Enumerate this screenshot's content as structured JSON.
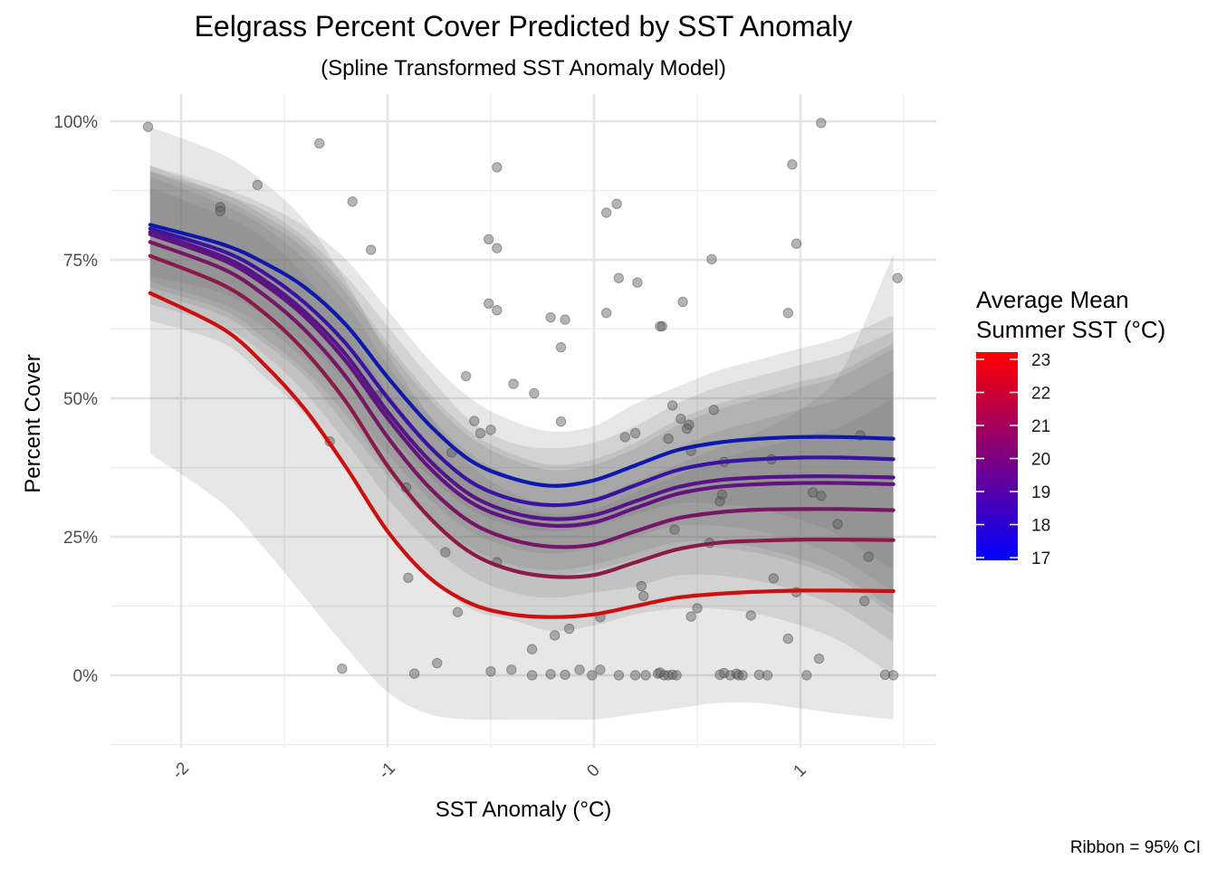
{
  "chart_data": {
    "type": "line",
    "title": "Eelgrass Percent Cover Predicted by SST Anomaly",
    "subtitle": "(Spline Transformed SST Anomaly Model)",
    "xlabel": "SST Anomaly (°C)",
    "ylabel": "Percent Cover",
    "caption": "Ribbon = 95% CI",
    "xlim": [
      -2.35,
      1.65
    ],
    "ylim": [
      -0.13,
      1.05
    ],
    "x_ticks": [
      -2,
      -1,
      0,
      1
    ],
    "x_tick_labels": [
      "-2",
      "-1",
      "0",
      "1"
    ],
    "y_ticks": [
      0,
      0.25,
      0.5,
      0.75,
      1.0
    ],
    "y_tick_labels": [
      "0%",
      "25%",
      "50%",
      "75%",
      "100%"
    ],
    "grid": true,
    "legend": {
      "title_lines": [
        "Average Mean",
        "Summer SST (°C)"
      ],
      "placement": "right",
      "type": "colorbar",
      "min": 17,
      "max": 23,
      "ticks": [
        "17",
        "18",
        "19",
        "20",
        "21",
        "22",
        "23"
      ],
      "low_color": "#0000ff",
      "high_color": "#ff0000"
    },
    "x": [
      -2.15,
      -1.8,
      -1.6,
      -1.4,
      -1.2,
      -1.0,
      -0.8,
      -0.6,
      -0.4,
      -0.2,
      0.0,
      0.2,
      0.4,
      0.6,
      0.8,
      1.0,
      1.2,
      1.45
    ],
    "series": [
      {
        "sst": 17,
        "color": "#0e18aa",
        "values": [
          0.813,
          0.778,
          0.745,
          0.7,
          0.632,
          0.538,
          0.453,
          0.388,
          0.356,
          0.342,
          0.352,
          0.379,
          0.406,
          0.42,
          0.427,
          0.43,
          0.43,
          0.427
        ],
        "lower": [
          0.72,
          0.69,
          0.65,
          0.6,
          0.53,
          0.44,
          0.36,
          0.3,
          0.27,
          0.26,
          0.27,
          0.29,
          0.31,
          0.31,
          0.3,
          0.28,
          0.25,
          0.19
        ],
        "upper": [
          0.92,
          0.88,
          0.85,
          0.81,
          0.75,
          0.66,
          0.57,
          0.5,
          0.46,
          0.44,
          0.45,
          0.49,
          0.52,
          0.55,
          0.57,
          0.59,
          0.61,
          0.65
        ]
      },
      {
        "sst": 18,
        "color": "#3a14a0",
        "values": [
          0.806,
          0.766,
          0.727,
          0.672,
          0.598,
          0.501,
          0.414,
          0.35,
          0.318,
          0.307,
          0.316,
          0.343,
          0.37,
          0.384,
          0.39,
          0.393,
          0.393,
          0.39
        ],
        "lower": [
          0.71,
          0.67,
          0.63,
          0.57,
          0.49,
          0.4,
          0.32,
          0.26,
          0.23,
          0.22,
          0.23,
          0.25,
          0.27,
          0.27,
          0.26,
          0.24,
          0.21,
          0.15
        ],
        "upper": [
          0.92,
          0.87,
          0.84,
          0.79,
          0.72,
          0.63,
          0.54,
          0.46,
          0.42,
          0.41,
          0.42,
          0.45,
          0.49,
          0.52,
          0.54,
          0.56,
          0.58,
          0.62
        ]
      },
      {
        "sst": 19,
        "color": "#55148a",
        "values": [
          0.8,
          0.756,
          0.714,
          0.656,
          0.578,
          0.476,
          0.389,
          0.326,
          0.294,
          0.282,
          0.289,
          0.314,
          0.339,
          0.352,
          0.357,
          0.359,
          0.359,
          0.357
        ],
        "lower": [
          0.7,
          0.66,
          0.61,
          0.55,
          0.47,
          0.37,
          0.29,
          0.23,
          0.2,
          0.19,
          0.2,
          0.22,
          0.24,
          0.24,
          0.23,
          0.21,
          0.18,
          0.12
        ],
        "upper": [
          0.91,
          0.87,
          0.83,
          0.78,
          0.7,
          0.6,
          0.51,
          0.44,
          0.4,
          0.38,
          0.39,
          0.42,
          0.46,
          0.49,
          0.51,
          0.53,
          0.55,
          0.6
        ]
      },
      {
        "sst": 19.4,
        "color": "#62147e",
        "values": [
          0.796,
          0.75,
          0.706,
          0.647,
          0.566,
          0.464,
          0.376,
          0.313,
          0.282,
          0.27,
          0.276,
          0.302,
          0.327,
          0.34,
          0.345,
          0.347,
          0.347,
          0.345
        ],
        "lower": [
          0.69,
          0.65,
          0.6,
          0.54,
          0.45,
          0.36,
          0.28,
          0.22,
          0.19,
          0.18,
          0.19,
          0.21,
          0.23,
          0.23,
          0.22,
          0.2,
          0.17,
          0.11
        ],
        "upper": [
          0.91,
          0.86,
          0.82,
          0.77,
          0.69,
          0.59,
          0.5,
          0.43,
          0.39,
          0.37,
          0.38,
          0.41,
          0.45,
          0.48,
          0.5,
          0.52,
          0.54,
          0.59
        ]
      },
      {
        "sst": 20,
        "color": "#751765",
        "values": [
          0.782,
          0.734,
          0.687,
          0.623,
          0.538,
          0.43,
          0.34,
          0.277,
          0.245,
          0.232,
          0.236,
          0.26,
          0.283,
          0.294,
          0.299,
          0.3,
          0.3,
          0.298
        ],
        "lower": [
          0.67,
          0.63,
          0.58,
          0.51,
          0.42,
          0.32,
          0.24,
          0.18,
          0.15,
          0.14,
          0.15,
          0.16,
          0.18,
          0.18,
          0.17,
          0.15,
          0.12,
          0.06
        ],
        "upper": [
          0.9,
          0.85,
          0.81,
          0.75,
          0.67,
          0.56,
          0.47,
          0.4,
          0.36,
          0.34,
          0.35,
          0.38,
          0.41,
          0.44,
          0.46,
          0.48,
          0.5,
          0.55
        ]
      },
      {
        "sst": 21,
        "color": "#8a1a48",
        "values": [
          0.757,
          0.705,
          0.655,
          0.585,
          0.493,
          0.378,
          0.286,
          0.222,
          0.19,
          0.178,
          0.181,
          0.204,
          0.227,
          0.239,
          0.243,
          0.245,
          0.245,
          0.244
        ],
        "lower": [
          0.64,
          0.6,
          0.54,
          0.47,
          0.37,
          0.26,
          0.18,
          0.12,
          0.1,
          0.08,
          0.09,
          0.11,
          0.12,
          0.12,
          0.11,
          0.09,
          0.06,
          0.0
        ],
        "upper": [
          0.88,
          0.83,
          0.79,
          0.72,
          0.63,
          0.51,
          0.42,
          0.35,
          0.31,
          0.29,
          0.3,
          0.33,
          0.36,
          0.39,
          0.41,
          0.43,
          0.45,
          0.5
        ]
      },
      {
        "sst": 23,
        "color": "#cc1010",
        "values": [
          0.69,
          0.626,
          0.562,
          0.48,
          0.375,
          0.26,
          0.177,
          0.13,
          0.11,
          0.105,
          0.11,
          0.125,
          0.14,
          0.147,
          0.151,
          0.153,
          0.153,
          0.152
        ],
        "lower": [
          0.4,
          0.31,
          0.23,
          0.14,
          0.05,
          -0.03,
          -0.07,
          -0.08,
          -0.08,
          -0.08,
          -0.08,
          -0.07,
          -0.06,
          -0.05,
          -0.05,
          -0.06,
          -0.07,
          -0.08
        ],
        "upper": [
          0.99,
          0.94,
          0.89,
          0.82,
          0.71,
          0.58,
          0.47,
          0.38,
          0.33,
          0.31,
          0.32,
          0.35,
          0.38,
          0.41,
          0.44,
          0.48,
          0.55,
          0.76
        ]
      }
    ],
    "points": [
      [
        -2.16,
        0.99
      ],
      [
        -1.33,
        0.96
      ],
      [
        -1.63,
        0.885
      ],
      [
        -1.81,
        0.845
      ],
      [
        -1.81,
        0.838
      ],
      [
        -1.17,
        0.855
      ],
      [
        -1.08,
        0.768
      ],
      [
        -1.05,
        0.505
      ],
      [
        -0.47,
        0.917
      ],
      [
        -0.51,
        0.787
      ],
      [
        -0.47,
        0.771
      ],
      [
        -0.51,
        0.671
      ],
      [
        -0.47,
        0.659
      ],
      [
        0.06,
        0.835
      ],
      [
        0.11,
        0.851
      ],
      [
        0.12,
        0.717
      ],
      [
        0.21,
        0.709
      ],
      [
        0.06,
        0.654
      ],
      [
        -0.21,
        0.646
      ],
      [
        -0.14,
        0.642
      ],
      [
        -0.16,
        0.592
      ],
      [
        0.33,
        0.63
      ],
      [
        0.43,
        0.674
      ],
      [
        0.57,
        0.751
      ],
      [
        0.96,
        0.922
      ],
      [
        0.98,
        0.779
      ],
      [
        1.1,
        0.997
      ],
      [
        1.47,
        0.717
      ],
      [
        0.94,
        0.654
      ],
      [
        -0.39,
        0.526
      ],
      [
        -0.29,
        0.509
      ],
      [
        -0.62,
        0.54
      ],
      [
        -0.58,
        0.459
      ],
      [
        -0.5,
        0.443
      ],
      [
        -0.55,
        0.437
      ],
      [
        -0.16,
        0.458
      ],
      [
        -0.69,
        0.402
      ],
      [
        0.32,
        0.63
      ],
      [
        0.38,
        0.487
      ],
      [
        0.42,
        0.463
      ],
      [
        0.46,
        0.452
      ],
      [
        0.45,
        0.445
      ],
      [
        0.15,
        0.43
      ],
      [
        0.2,
        0.437
      ],
      [
        0.36,
        0.427
      ],
      [
        0.58,
        0.479
      ],
      [
        0.47,
        0.405
      ],
      [
        0.63,
        0.385
      ],
      [
        1.29,
        0.433
      ],
      [
        1.06,
        0.33
      ],
      [
        1.1,
        0.324
      ],
      [
        0.62,
        0.326
      ],
      [
        0.61,
        0.314
      ],
      [
        0.86,
        0.39
      ],
      [
        0.39,
        0.263
      ],
      [
        1.18,
        0.273
      ],
      [
        0.56,
        0.239
      ],
      [
        1.33,
        0.214
      ],
      [
        -0.47,
        0.204
      ],
      [
        -0.72,
        0.222
      ],
      [
        -1.28,
        0.422
      ],
      [
        -0.91,
        0.339
      ],
      [
        -0.9,
        0.176
      ],
      [
        0.23,
        0.161
      ],
      [
        0.24,
        0.143
      ],
      [
        0.87,
        0.175
      ],
      [
        0.5,
        0.121
      ],
      [
        0.47,
        0.106
      ],
      [
        0.76,
        0.108
      ],
      [
        1.31,
        0.134
      ],
      [
        -0.66,
        0.114
      ],
      [
        0.03,
        0.105
      ],
      [
        0.98,
        0.15
      ],
      [
        -0.12,
        0.084
      ],
      [
        -0.19,
        0.072
      ],
      [
        -0.3,
        0.047
      ],
      [
        0.94,
        0.066
      ],
      [
        1.09,
        0.03
      ],
      [
        -1.22,
        0.012
      ],
      [
        -0.87,
        0.003
      ],
      [
        -0.76,
        0.022
      ],
      [
        -0.5,
        0.007
      ],
      [
        -0.4,
        0.01
      ],
      [
        -0.3,
        0.0
      ],
      [
        -0.21,
        0.002
      ],
      [
        -0.14,
        0.001
      ],
      [
        -0.07,
        0.01
      ],
      [
        -0.01,
        0.0
      ],
      [
        0.03,
        0.01
      ],
      [
        0.12,
        0.0
      ],
      [
        0.2,
        0.0
      ],
      [
        0.25,
        0.0
      ],
      [
        0.31,
        0.003
      ],
      [
        0.32,
        0.005
      ],
      [
        0.34,
        0.0
      ],
      [
        0.36,
        0.0
      ],
      [
        0.38,
        0.001
      ],
      [
        0.4,
        0.0
      ],
      [
        0.61,
        0.001
      ],
      [
        0.63,
        0.004
      ],
      [
        0.66,
        0.0
      ],
      [
        0.69,
        0.003
      ],
      [
        0.7,
        0.0
      ],
      [
        0.72,
        0.0
      ],
      [
        0.8,
        0.001
      ],
      [
        0.84,
        0.0
      ],
      [
        1.03,
        0.0
      ],
      [
        1.41,
        0.001
      ],
      [
        1.45,
        0.0
      ]
    ]
  }
}
